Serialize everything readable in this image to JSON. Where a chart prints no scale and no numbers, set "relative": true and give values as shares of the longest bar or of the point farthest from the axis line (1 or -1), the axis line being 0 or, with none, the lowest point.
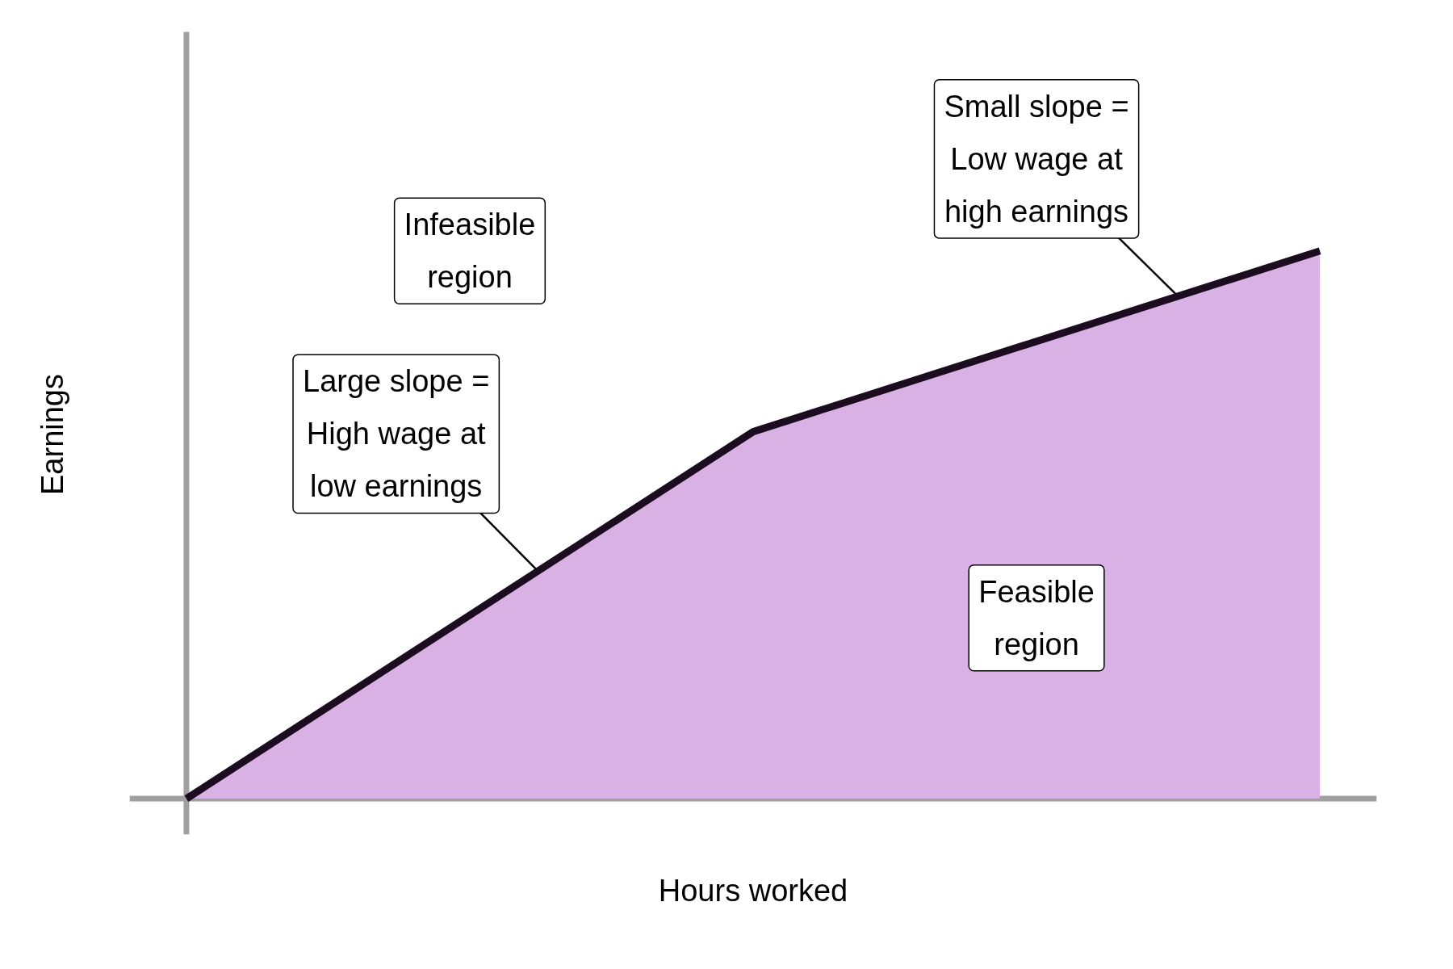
{
  "chart_data": {
    "type": "area",
    "relative": true,
    "xlabel": "Hours worked",
    "ylabel": "Earnings",
    "categories": [
      null,
      null,
      null
    ],
    "series": [
      {
        "color": "#d9b1e5",
        "values": [
          0,
          0.67,
          1
        ]
      }
    ],
    "annotations": [
      "Infeasible\nregion",
      "Large slope =\nHigh wage at\nlow earnings",
      "Small slope =\nLow wage at\nhigh earnings",
      "Feasible\nregion"
    ],
    "grid": false
  }
}
